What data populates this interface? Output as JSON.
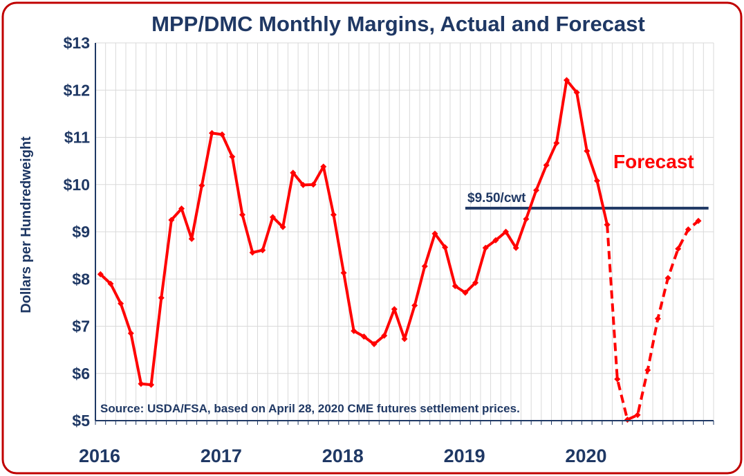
{
  "chart_data": {
    "type": "line",
    "title": "MPP/DMC Monthly Margins, Actual and Forecast",
    "ylabel": "Dollars per Hundredweight",
    "xlabel": "",
    "ylim": [
      5,
      13
    ],
    "y_ticks": [
      {
        "value": 5,
        "label": "$5"
      },
      {
        "value": 6,
        "label": "$6"
      },
      {
        "value": 7,
        "label": "$7"
      },
      {
        "value": 8,
        "label": "$8"
      },
      {
        "value": 9,
        "label": "$9"
      },
      {
        "value": 10,
        "label": "$10"
      },
      {
        "value": 11,
        "label": "$11"
      },
      {
        "value": 12,
        "label": "$12"
      },
      {
        "value": 13,
        "label": "$13"
      }
    ],
    "x_ticks": [
      {
        "index": 0,
        "label": "2016"
      },
      {
        "index": 12,
        "label": "2017"
      },
      {
        "index": 24,
        "label": "2018"
      },
      {
        "index": 36,
        "label": "2019"
      },
      {
        "index": 48,
        "label": "2020"
      }
    ],
    "x_months": 61,
    "grid": true,
    "series": [
      {
        "name": "",
        "style": "solid",
        "color": "#ff0000",
        "start_index": 0,
        "values": [
          8.1,
          7.9,
          7.48,
          6.85,
          5.78,
          5.76,
          7.6,
          9.25,
          9.49,
          8.85,
          9.98,
          11.09,
          11.06,
          10.59,
          9.36,
          8.56,
          8.61,
          9.31,
          9.1,
          10.25,
          9.99,
          10.0,
          10.38,
          9.36,
          8.13,
          6.9,
          6.78,
          6.62,
          6.8,
          7.36,
          6.73,
          7.44,
          8.27,
          8.96,
          8.67,
          7.85,
          7.71,
          7.92,
          8.66,
          8.82,
          9.0,
          8.66,
          9.27,
          9.88,
          10.41,
          10.88,
          12.21,
          11.95,
          10.71,
          10.08,
          9.15
        ]
      },
      {
        "name": "",
        "style": "dashed",
        "color": "#ff0000",
        "start_index": 50,
        "values": [
          9.15,
          5.88,
          5.02,
          5.12,
          6.07,
          7.16,
          8.02,
          8.64,
          9.05,
          9.23
        ]
      }
    ],
    "reference_line": {
      "value": 9.5,
      "start_index": 36,
      "end_index": 60,
      "label": "$9.50/cwt",
      "color": "#1f3864"
    },
    "annotations": {
      "forecast": "Forecast",
      "source": "Source:  USDA/FSA, based on April 28, 2020 CME futures settlement prices."
    },
    "colors": {
      "frame": "#c00000",
      "axis": "#1f3864",
      "grid": "#d9d9d9",
      "series": "#ff0000"
    }
  }
}
